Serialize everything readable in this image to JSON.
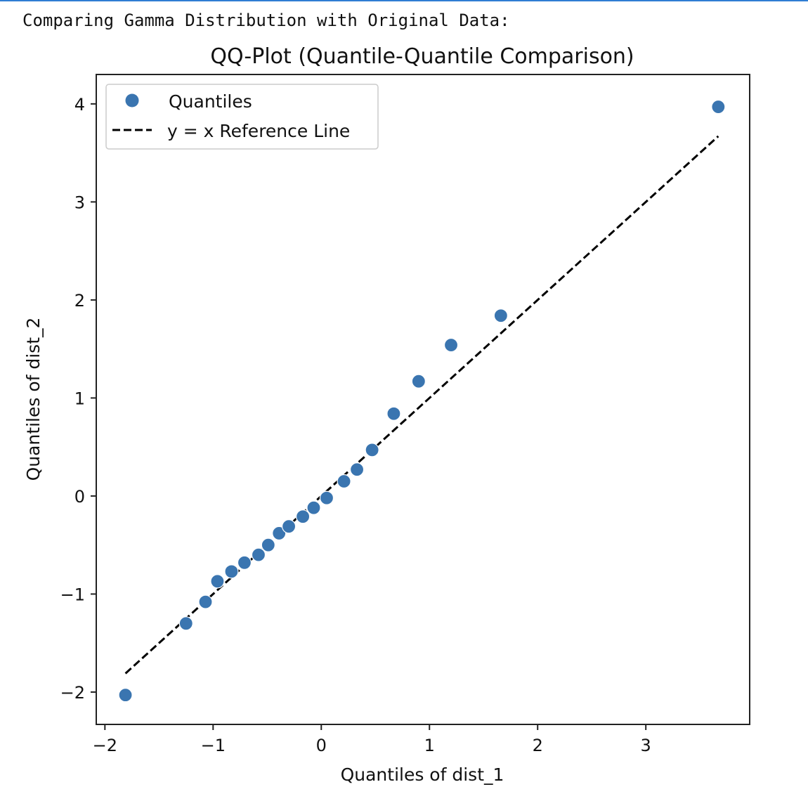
{
  "output": {
    "text": "Comparing Gamma Distribution with Original Data:"
  },
  "colors": {
    "marker": "#3a75b0",
    "reference_line": "#000000",
    "axes": "#222222"
  },
  "chart_data": {
    "type": "scatter",
    "title": "QQ-Plot (Quantile-Quantile Comparison)",
    "xlabel": "Quantiles of dist_1",
    "ylabel": "Quantiles of dist_2",
    "xlim": [
      -2.08,
      3.96
    ],
    "ylim": [
      -2.33,
      4.3
    ],
    "xticks": [
      -2,
      -1,
      0,
      1,
      2,
      3
    ],
    "yticks": [
      -2,
      -1,
      0,
      1,
      2,
      3,
      4
    ],
    "xtick_labels": [
      "−2",
      "−1",
      "0",
      "1",
      "2",
      "3"
    ],
    "ytick_labels": [
      "−2",
      "−1",
      "0",
      "1",
      "2",
      "3",
      "4"
    ],
    "grid": false,
    "legend": {
      "placement": "top-left",
      "entries": [
        "Quantiles",
        "y = x Reference Line"
      ]
    },
    "series": [
      {
        "name": "Quantiles",
        "kind": "points",
        "x": [
          -1.81,
          -1.25,
          -1.07,
          -0.96,
          -0.83,
          -0.71,
          -0.58,
          -0.49,
          -0.39,
          -0.3,
          -0.17,
          -0.07,
          0.05,
          0.21,
          0.33,
          0.47,
          0.67,
          0.9,
          1.2,
          1.66,
          3.67
        ],
        "y": [
          -2.03,
          -1.3,
          -1.08,
          -0.87,
          -0.77,
          -0.68,
          -0.6,
          -0.5,
          -0.38,
          -0.31,
          -0.21,
          -0.12,
          -0.02,
          0.15,
          0.27,
          0.47,
          0.84,
          1.17,
          1.54,
          1.84,
          3.97
        ]
      },
      {
        "name": "y = x Reference Line",
        "kind": "dashed-line",
        "x": [
          -1.81,
          3.67
        ],
        "y": [
          -1.81,
          3.67
        ]
      }
    ]
  }
}
